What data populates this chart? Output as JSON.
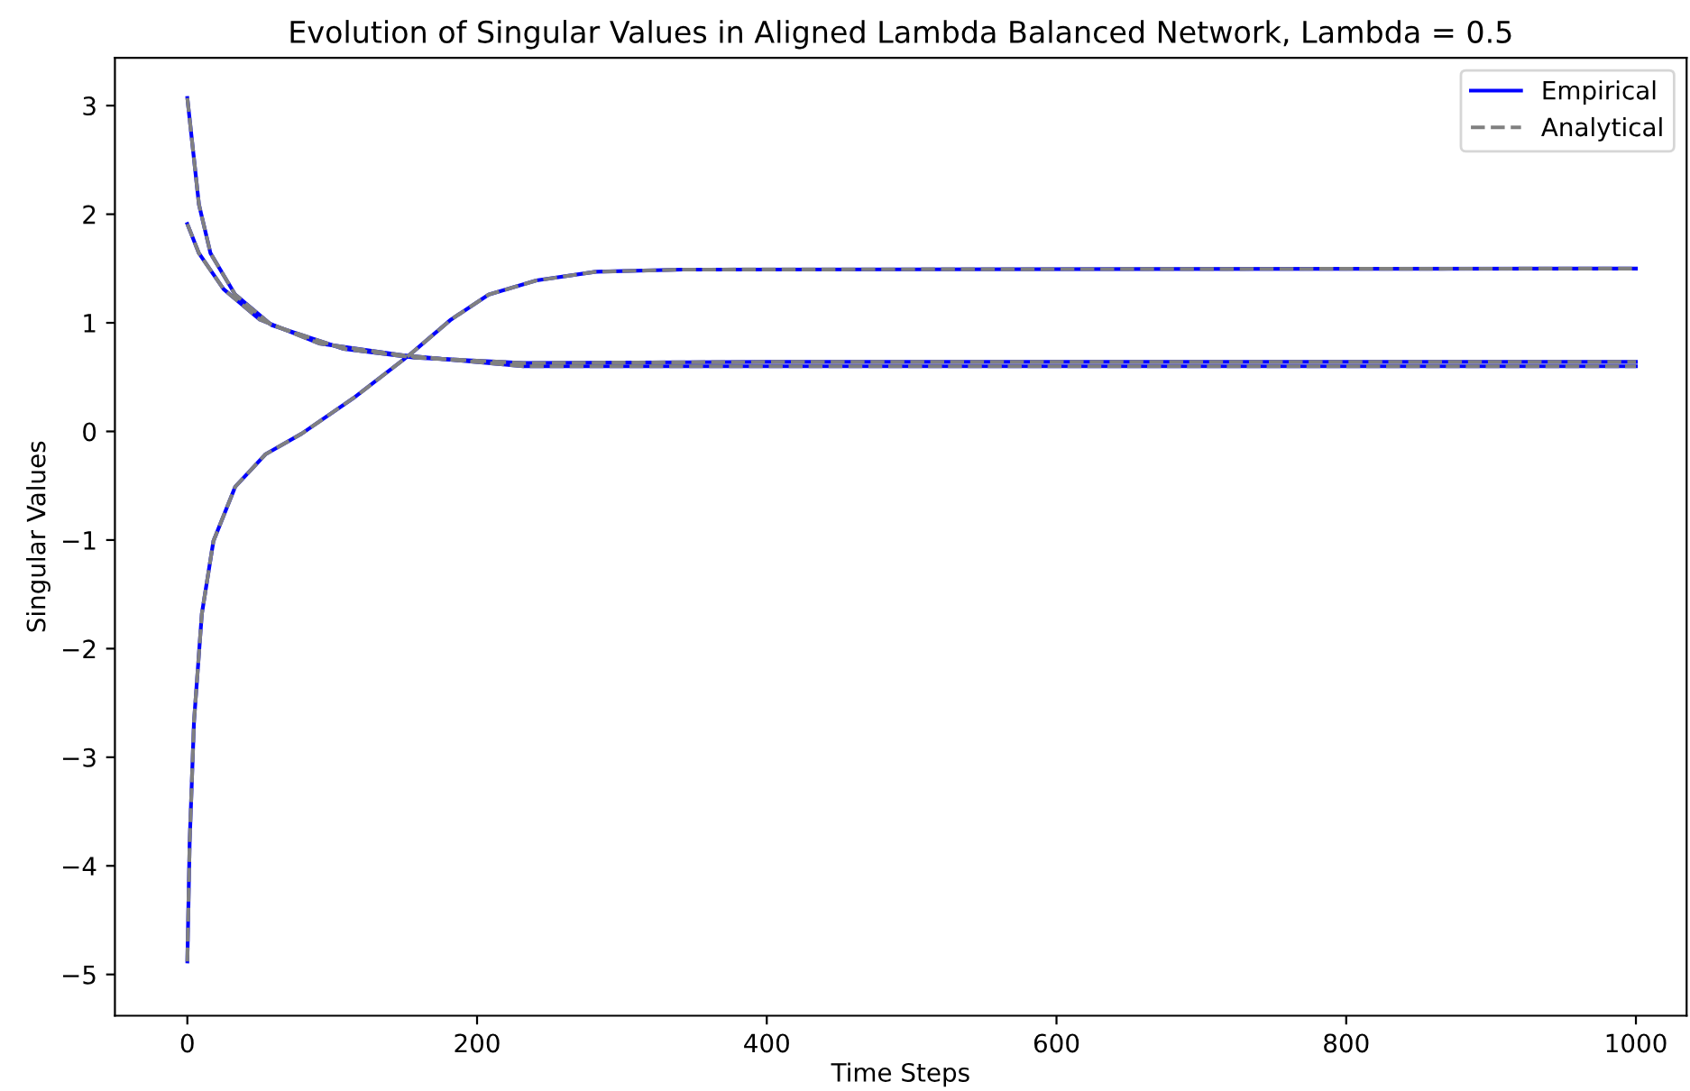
{
  "chart_data": {
    "type": "line",
    "title": "Evolution of Singular Values in Aligned Lambda Balanced Network, Lambda = 0.5",
    "xlabel": "Time Steps",
    "ylabel": "Singular Values",
    "xlim": [
      -50,
      1035
    ],
    "xticks": [
      0,
      200,
      400,
      600,
      800,
      1000
    ],
    "ylim": [
      -5.38,
      3.44
    ],
    "yticks": [
      -5,
      -4,
      -3,
      -2,
      -1,
      0,
      1,
      2,
      3
    ],
    "grid": false,
    "legend": "top right",
    "series": [
      {
        "name": "Empirical",
        "color": "#0000ff",
        "line_style": "solid",
        "x": [
          0,
          8,
          16,
          33,
          58,
          108,
          157,
          232,
          400,
          1000
        ],
        "values": [
          3.07,
          2.09,
          1.64,
          1.26,
          0.98,
          0.76,
          0.68,
          0.63,
          0.64,
          0.64
        ]
      },
      {
        "color": "#0000ff",
        "line_style": "solid",
        "x": [
          0,
          8,
          25,
          50,
          91,
          149,
          232,
          400,
          1000
        ],
        "values": [
          1.91,
          1.64,
          1.31,
          1.03,
          0.81,
          0.7,
          0.6,
          0.6,
          0.6
        ]
      },
      {
        "color": "#0000ff",
        "line_style": "solid",
        "x": [
          0,
          1.6,
          4.6,
          10,
          18,
          33,
          54,
          79,
          116,
          153,
          182,
          208,
          241,
          282,
          341,
          1000
        ],
        "values": [
          -4.88,
          -3.78,
          -2.67,
          -1.68,
          -1.01,
          -0.51,
          -0.21,
          -0.02,
          0.32,
          0.7,
          1.03,
          1.26,
          1.39,
          1.47,
          1.49,
          1.5
        ]
      },
      {
        "name": "Analytical",
        "color": "#808080",
        "line_style": "dashed",
        "x": [
          0,
          8,
          16,
          33,
          58,
          108,
          157,
          232,
          400,
          1000
        ],
        "values": [
          3.07,
          2.09,
          1.64,
          1.26,
          0.98,
          0.76,
          0.68,
          0.63,
          0.64,
          0.64
        ]
      },
      {
        "color": "#808080",
        "line_style": "dashed",
        "x": [
          0,
          8,
          25,
          50,
          91,
          149,
          232,
          400,
          1000
        ],
        "values": [
          1.91,
          1.64,
          1.31,
          1.03,
          0.81,
          0.7,
          0.6,
          0.6,
          0.6
        ]
      },
      {
        "color": "#808080",
        "line_style": "dashed",
        "x": [
          0,
          1.6,
          4.6,
          10,
          18,
          33,
          54,
          79,
          116,
          153,
          182,
          208,
          241,
          282,
          341,
          1000
        ],
        "values": [
          -4.88,
          -3.78,
          -2.67,
          -1.68,
          -1.01,
          -0.51,
          -0.21,
          -0.02,
          0.32,
          0.7,
          1.03,
          1.26,
          1.39,
          1.47,
          1.49,
          1.5
        ]
      }
    ]
  }
}
